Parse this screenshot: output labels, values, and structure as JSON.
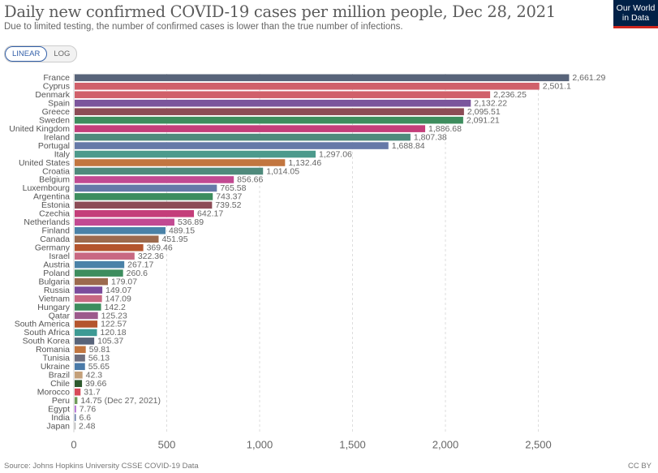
{
  "header": {
    "title": "Daily new confirmed COVID-19 cases per million people, Dec 28, 2021",
    "subtitle": "Due to limited testing, the number of confirmed cases is lower than the true number of infections.",
    "logo_line1": "Our World",
    "logo_line2": "in Data"
  },
  "scale_toggle": {
    "linear_label": "LINEAR",
    "log_label": "LOG",
    "selected": "LINEAR"
  },
  "footer": {
    "source": "Source: Johns Hopkins University CSSE COVID-19 Data",
    "license": "CC BY"
  },
  "chart_data": {
    "type": "bar",
    "orientation": "horizontal",
    "title": "Daily new confirmed COVID-19 cases per million people, Dec 28, 2021",
    "xlabel": "",
    "ylabel": "",
    "xlim": [
      0,
      2800
    ],
    "xticks": [
      0,
      500,
      1000,
      1500,
      2000,
      2500
    ],
    "xtick_labels": [
      "0",
      "500",
      "1,000",
      "1,500",
      "2,000",
      "2,500"
    ],
    "grid": "vertical dashed",
    "categories": [
      "France",
      "Cyprus",
      "Denmark",
      "Spain",
      "Greece",
      "Sweden",
      "United Kingdom",
      "Ireland",
      "Portugal",
      "Italy",
      "United States",
      "Croatia",
      "Belgium",
      "Luxembourg",
      "Argentina",
      "Estonia",
      "Czechia",
      "Netherlands",
      "Finland",
      "Canada",
      "Germany",
      "Israel",
      "Austria",
      "Poland",
      "Bulgaria",
      "Russia",
      "Vietnam",
      "Hungary",
      "Qatar",
      "South America",
      "South Africa",
      "South Korea",
      "Romania",
      "Tunisia",
      "Ukraine",
      "Brazil",
      "Chile",
      "Morocco",
      "Peru",
      "Egypt",
      "India",
      "Japan"
    ],
    "values": [
      2661.29,
      2501.1,
      2236.25,
      2132.22,
      2095.51,
      2091.21,
      1886.68,
      1807.38,
      1688.84,
      1297.06,
      1132.46,
      1014.05,
      856.66,
      765.58,
      743.37,
      739.52,
      642.17,
      536.89,
      489.15,
      451.95,
      369.46,
      322.36,
      267.17,
      260.6,
      179.07,
      149.07,
      147.09,
      142.2,
      125.23,
      122.57,
      120.18,
      105.37,
      59.81,
      56.13,
      55.65,
      42.3,
      39.66,
      31.7,
      14.75,
      7.76,
      6.6,
      2.48
    ],
    "value_labels": [
      "2,661.29",
      "2,501.1",
      "2,236.25",
      "2,132.22",
      "2,095.51",
      "2,091.21",
      "1,886.68",
      "1,807.38",
      "1,688.84",
      "1,297.06",
      "1,132.46",
      "1,014.05",
      "856.66",
      "765.58",
      "743.37",
      "739.52",
      "642.17",
      "536.89",
      "489.15",
      "451.95",
      "369.46",
      "322.36",
      "267.17",
      "260.6",
      "179.07",
      "149.07",
      "147.09",
      "142.2",
      "125.23",
      "122.57",
      "120.18",
      "105.37",
      "59.81",
      "56.13",
      "55.65",
      "42.3",
      "39.66",
      "31.7",
      "14.75 (Dec 27, 2021)",
      "7.76",
      "6.6",
      "2.48"
    ],
    "colors": [
      "#58647a",
      "#d0606a",
      "#d0606a",
      "#7b559c",
      "#8c4c56",
      "#3d8d5e",
      "#c43e7a",
      "#4f8a7c",
      "#6679a8",
      "#4c9a8c",
      "#c27640",
      "#4f8a7c",
      "#c24a92",
      "#6679a8",
      "#3d8d5e",
      "#8c4c56",
      "#c43e7a",
      "#c24a92",
      "#4a82a8",
      "#9c6a4e",
      "#b4552e",
      "#c86882",
      "#4a82a8",
      "#3d8d5e",
      "#9c6a4e",
      "#7b4c9c",
      "#c86882",
      "#3d8d5e",
      "#9c5a8c",
      "#b4552e",
      "#3d9a94",
      "#58647a",
      "#c27640",
      "#6e6e7e",
      "#4a7aa8",
      "#c4a07a",
      "#2e5a2e",
      "#d84a5a",
      "#6e9a5a",
      "#b06ad4",
      "#6679a8",
      "#a8a8a8"
    ]
  }
}
